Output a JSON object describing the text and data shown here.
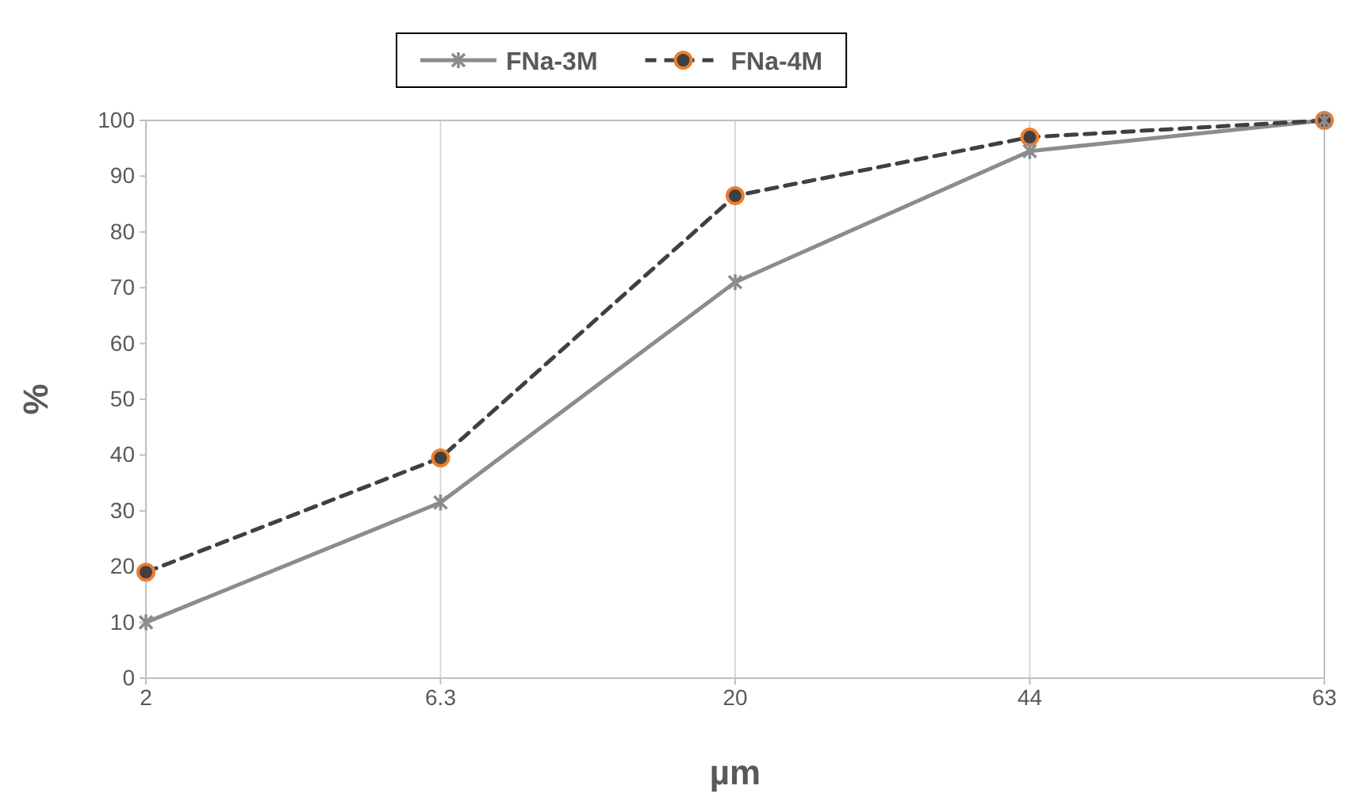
{
  "chart_data": {
    "type": "line",
    "xlabel": "µm",
    "ylabel": "%",
    "categories": [
      "2",
      "6.3",
      "20",
      "44",
      "63"
    ],
    "ylim": [
      0,
      100
    ],
    "yticks": [
      0,
      10,
      20,
      30,
      40,
      50,
      60,
      70,
      80,
      90,
      100
    ],
    "grid": "x",
    "legend": "top",
    "series": [
      {
        "name": "FNa-3M",
        "color": "#8c8c8c",
        "values": [
          10,
          31.5,
          71,
          94.5,
          100
        ],
        "marker": "cross",
        "line_style": "solid"
      },
      {
        "name": "FNa-4M",
        "color": "#404040",
        "colors": [
          "#ed7d31",
          "#ed7d31",
          "#ed7d31",
          "#ed7d31",
          "#ed7d31"
        ],
        "values": [
          19,
          39.5,
          86.5,
          97,
          100
        ],
        "marker": "circle",
        "line_style": "dashed"
      }
    ]
  }
}
